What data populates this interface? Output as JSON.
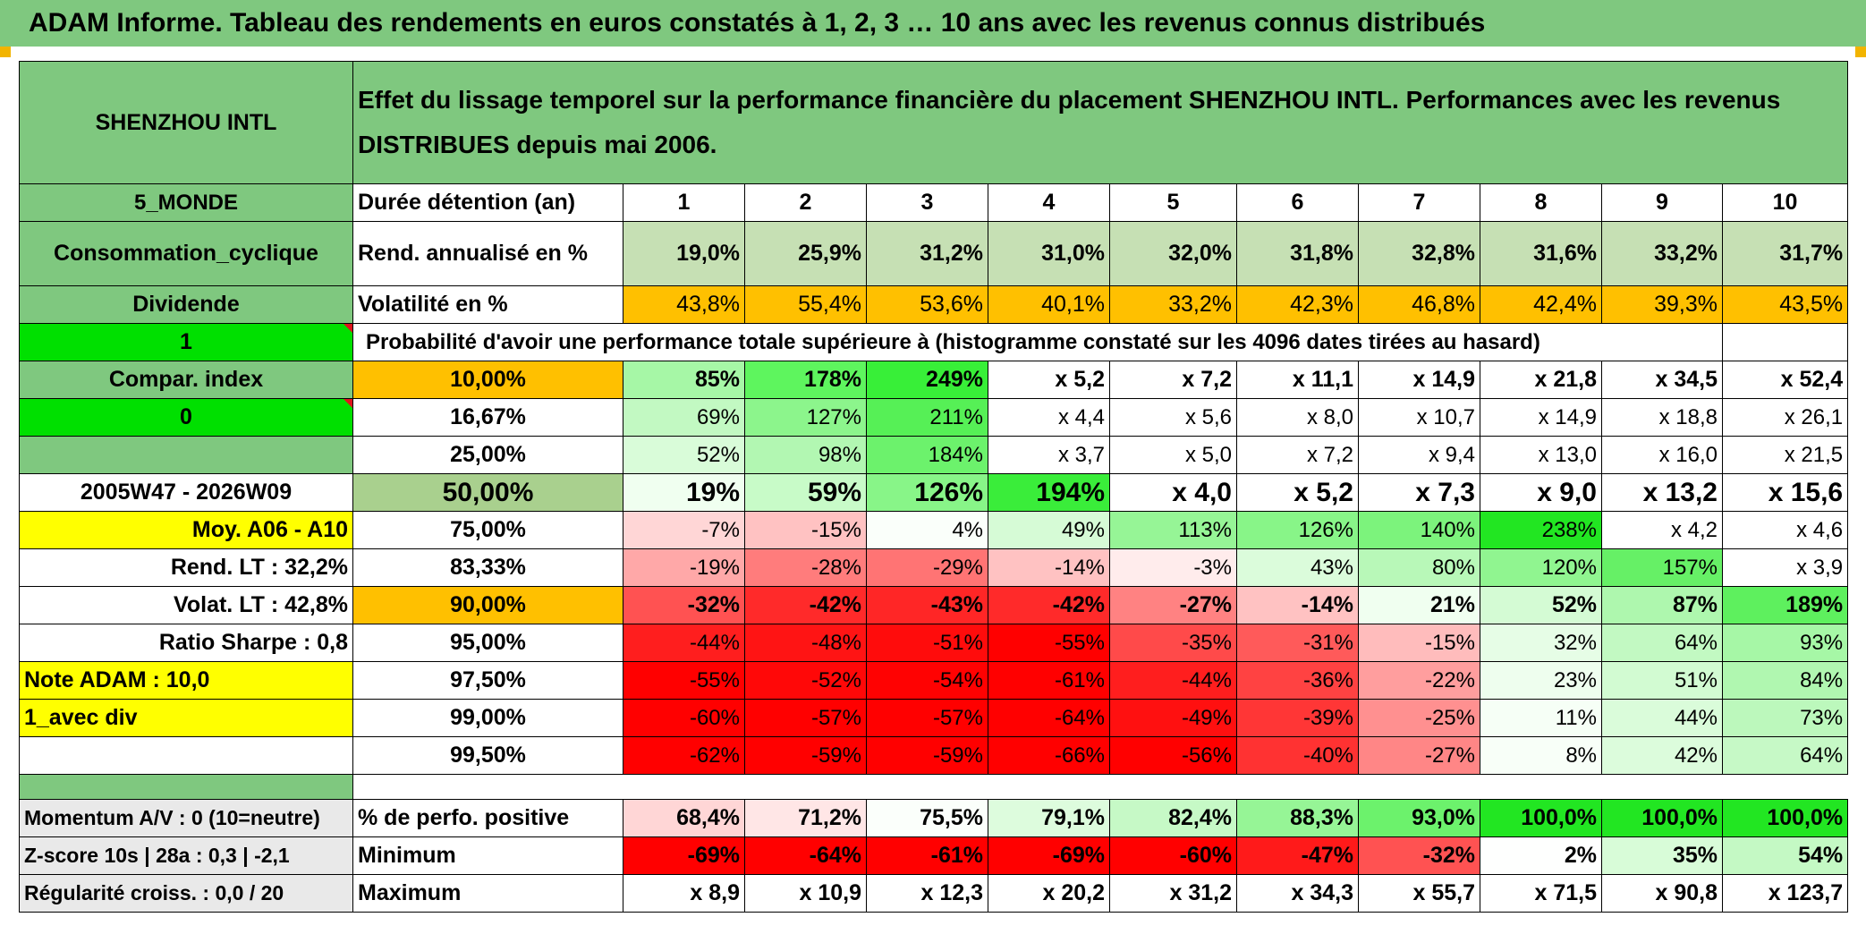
{
  "title": "ADAM Informe. Tableau des rendements en euros constatés à 1, 2, 3 … 10 ans avec les revenus connus distribués",
  "left": {
    "name": "SHENZHOU INTL",
    "region": "5_MONDE",
    "sector": "Consommation_cyclique",
    "div_mode": "Dividende",
    "flag1": "1",
    "compar": "Compar. index",
    "flag0": "0",
    "period": "2005W47 - 2026W09",
    "moy": "Moy. A06 - A10",
    "rend_lt": "Rend. LT :   32,2%",
    "volat_lt": "Volat. LT :   42,8%",
    "sharpe": "Ratio Sharpe :   0,8",
    "note": "Note ADAM : 10,0",
    "avec_div": "1_avec div",
    "momentum": "Momentum A/V : 0 (10=neutre)",
    "zscore": "Z-score 10s | 28a : 0,3 | -2,1",
    "regularite": "Régularité croiss. : 0,0 / 20"
  },
  "header_text": "Effet du lissage temporel sur la performance financière du placement SHENZHOU INTL. Performances avec les revenus DISTRIBUES depuis mai 2006.",
  "duree_label": "Durée détention (an)",
  "years": [
    "1",
    "2",
    "3",
    "4",
    "5",
    "6",
    "7",
    "8",
    "9",
    "10"
  ],
  "rend_label": "Rend. annualisé en %",
  "rend": [
    "19,0%",
    "25,9%",
    "31,2%",
    "31,0%",
    "32,0%",
    "31,8%",
    "32,8%",
    "31,6%",
    "33,2%",
    "31,7%"
  ],
  "vol_label": "Volatilité en %",
  "vol": [
    "43,8%",
    "55,4%",
    "53,6%",
    "40,1%",
    "33,2%",
    "42,3%",
    "46,8%",
    "42,4%",
    "39,3%",
    "43,5%"
  ],
  "proba_text": "Probabilité d'avoir une performance totale supérieure à (histogramme constaté sur les 4096 dates tirées au hasard)",
  "quantiles": [
    {
      "pct": "10,00%",
      "vals": [
        "85%",
        "178%",
        "249%",
        "x 5,2",
        "x 7,2",
        "x 11,1",
        "x 14,9",
        "x 21,8",
        "x 34,5",
        "x 52,4"
      ],
      "colors": [
        "#a6f7a6",
        "#5ef55e",
        "#38ef38",
        "#fff",
        "#fff",
        "#fff",
        "#fff",
        "#fff",
        "#fff",
        "#fff"
      ]
    },
    {
      "pct": "16,67%",
      "vals": [
        "69%",
        "127%",
        "211%",
        "x 4,4",
        "x 5,6",
        "x 8,0",
        "x 10,7",
        "x 14,9",
        "x 18,8",
        "x 26,1"
      ],
      "colors": [
        "#c2f9c2",
        "#8cf58c",
        "#56f056",
        "#fff",
        "#fff",
        "#fff",
        "#fff",
        "#fff",
        "#fff",
        "#fff"
      ]
    },
    {
      "pct": "25,00%",
      "vals": [
        "52%",
        "98%",
        "184%",
        "x 3,7",
        "x 5,0",
        "x 7,2",
        "x 9,4",
        "x 13,0",
        "x 16,0",
        "x 21,5"
      ],
      "colors": [
        "#d9fcd9",
        "#b2f7b2",
        "#6cf26c",
        "#fff",
        "#fff",
        "#fff",
        "#fff",
        "#fff",
        "#fff",
        "#fff"
      ]
    },
    {
      "pct": "50,00%",
      "vals": [
        "19%",
        "59%",
        "126%",
        "194%",
        "x 4,0",
        "x 5,2",
        "x 7,3",
        "x 9,0",
        "x 13,2",
        "x 15,6"
      ],
      "colors": [
        "#f0fff0",
        "#c8fbc8",
        "#88f588",
        "#3aed3a",
        "#fff",
        "#fff",
        "#fff",
        "#fff",
        "#fff",
        "#fff"
      ]
    },
    {
      "pct": "75,00%",
      "vals": [
        "-7%",
        "-15%",
        "4%",
        "49%",
        "113%",
        "126%",
        "140%",
        "238%",
        "x 4,2",
        "x 4,6"
      ],
      "colors": [
        "#ffd6d6",
        "#ffc2c2",
        "#fafffa",
        "#d6fbd6",
        "#96f596",
        "#88f588",
        "#7cf37c",
        "#22e622",
        "#fff",
        "#fff"
      ]
    },
    {
      "pct": "83,33%",
      "vals": [
        "-19%",
        "-28%",
        "-29%",
        "-14%",
        "-3%",
        "43%",
        "80%",
        "120%",
        "157%",
        "x 3,9"
      ],
      "colors": [
        "#ffa8a8",
        "#ff7c7c",
        "#ff7474",
        "#ffc2c2",
        "#ffecec",
        "#dbfcdb",
        "#b8f8b8",
        "#90f590",
        "#66f066",
        "#fff"
      ]
    },
    {
      "pct": "90,00%",
      "vals": [
        "-32%",
        "-42%",
        "-43%",
        "-42%",
        "-27%",
        "-14%",
        "21%",
        "52%",
        "87%",
        "189%"
      ],
      "colors": [
        "#ff5252",
        "#ff2a2a",
        "#ff2626",
        "#ff2a2a",
        "#ff8282",
        "#ffc2c2",
        "#f0fff0",
        "#d4fbd4",
        "#aef7ae",
        "#5ef05e"
      ]
    },
    {
      "pct": "95,00%",
      "vals": [
        "-44%",
        "-48%",
        "-51%",
        "-55%",
        "-35%",
        "-31%",
        "-15%",
        "32%",
        "64%",
        "93%"
      ],
      "colors": [
        "#ff1e1e",
        "#ff1414",
        "#ff0c0c",
        "#ff0000",
        "#ff4a4a",
        "#ff5a5a",
        "#ffbcbc",
        "#e6fde6",
        "#c2f9c2",
        "#a6f7a6"
      ]
    },
    {
      "pct": "97,50%",
      "vals": [
        "-55%",
        "-52%",
        "-54%",
        "-61%",
        "-44%",
        "-36%",
        "-22%",
        "23%",
        "51%",
        "84%"
      ],
      "colors": [
        "#ff0000",
        "#ff0808",
        "#ff0202",
        "#ff0000",
        "#ff1e1e",
        "#ff4242",
        "#ff9e9e",
        "#eefeee",
        "#d2fbd2",
        "#b0f7b0"
      ]
    },
    {
      "pct": "99,00%",
      "vals": [
        "-60%",
        "-57%",
        "-57%",
        "-64%",
        "-49%",
        "-39%",
        "-25%",
        "11%",
        "44%",
        "73%"
      ],
      "colors": [
        "#ff0000",
        "#ff0000",
        "#ff0000",
        "#ff0000",
        "#ff1010",
        "#ff3636",
        "#ff9090",
        "#f6fff6",
        "#dafcda",
        "#bcf8bc"
      ]
    },
    {
      "pct": "99,50%",
      "vals": [
        "-62%",
        "-59%",
        "-59%",
        "-66%",
        "-56%",
        "-40%",
        "-27%",
        "8%",
        "42%",
        "64%"
      ],
      "colors": [
        "#ff0000",
        "#ff0000",
        "#ff0000",
        "#ff0000",
        "#ff0000",
        "#ff3232",
        "#ff8686",
        "#f8fff8",
        "#dcfcdc",
        "#c6f9c6"
      ]
    }
  ],
  "pos_label": "% de perfo. positive",
  "pos": [
    "68,4%",
    "71,2%",
    "75,5%",
    "79,1%",
    "82,4%",
    "88,3%",
    "93,0%",
    "100,0%",
    "100,0%",
    "100,0%"
  ],
  "pos_colors": [
    "#ffd6d6",
    "#ffe6e6",
    "#fbfffb",
    "#ddfcdd",
    "#c6f9c6",
    "#96f596",
    "#6cf26c",
    "#22e622",
    "#22e622",
    "#22e622"
  ],
  "min_label": "Minimum",
  "min": [
    "-69%",
    "-64%",
    "-61%",
    "-69%",
    "-60%",
    "-47%",
    "-32%",
    "2%",
    "35%",
    "54%"
  ],
  "min_colors": [
    "#ff0000",
    "#ff0000",
    "#ff0000",
    "#ff0000",
    "#ff0000",
    "#ff1a1a",
    "#ff5252",
    "#fefffe",
    "#d8fcd8",
    "#c4f9c4"
  ],
  "max_label": "Maximum",
  "max": [
    "x 8,9",
    "x 10,9",
    "x 12,3",
    "x 20,2",
    "x 31,2",
    "x 34,3",
    "x 55,7",
    "x 71,5",
    "x 90,8",
    "x 123,7"
  ],
  "colors": {
    "title_green": "#7fc87f",
    "rend_bg": "#c6e0b4",
    "vol_bg": "#ffc000",
    "bright_green": "#00e000",
    "red_text": "#e0141e",
    "yellow": "#ffff00"
  }
}
